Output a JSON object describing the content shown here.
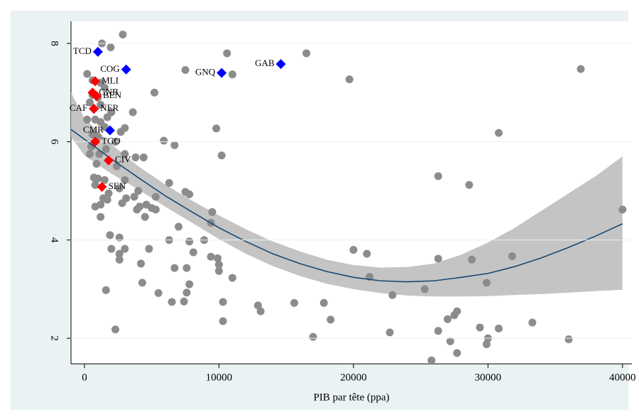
{
  "chart_data": {
    "type": "scatter",
    "xlabel": "PIB par tête (ppa)",
    "xlim": [
      -1000,
      40700
    ],
    "ylim": [
      1.48,
      8.45
    ],
    "xticks": [
      0,
      10000,
      20000,
      30000,
      40000
    ],
    "yticks": [
      2,
      4,
      6,
      8
    ],
    "grid": true,
    "points": {
      "color": "#8c8c8c",
      "x": [
        2850,
        1300,
        1950,
        10600,
        16500,
        7500,
        11000,
        200,
        36900,
        19700,
        600,
        1200,
        1500,
        5200,
        600,
        1000,
        400,
        1200,
        3600,
        2000,
        1700,
        800,
        200,
        1200,
        9800,
        3000,
        1500,
        2700,
        600,
        1000,
        30800,
        5900,
        6700,
        2300,
        500,
        1600,
        3000,
        4400,
        1100,
        400,
        10200,
        3800,
        900,
        2400,
        26300,
        700,
        1000,
        1500,
        3000,
        6300,
        28600,
        800,
        2600,
        4000,
        7500,
        7800,
        1800,
        5300,
        3100,
        3700,
        1400,
        2800,
        1700,
        4600,
        1200,
        800,
        4100,
        5000,
        3900,
        5300,
        40000,
        9500,
        1200,
        4500,
        9400,
        7000,
        1900,
        2600,
        6300,
        8900,
        7800,
        2000,
        3000,
        4800,
        2600,
        8100,
        20000,
        21000,
        31800,
        9400,
        9900,
        26300,
        2600,
        28800,
        4200,
        10000,
        7600,
        6700,
        10000,
        11000,
        21200,
        4300,
        7800,
        29900,
        1600,
        25300,
        7600,
        5500,
        22900,
        6500,
        7400,
        10300,
        12900,
        15600,
        17800,
        13100,
        27700,
        27500,
        27000,
        10300,
        18300,
        33300,
        29400,
        30800,
        2300,
        26300,
        22700,
        17000,
        30000,
        36000,
        27200,
        29900,
        27700,
        25800
      ],
      "y": [
        8.18,
        8.0,
        7.92,
        7.8,
        7.8,
        7.46,
        7.37,
        7.38,
        7.48,
        7.27,
        7.25,
        7.2,
        7.1,
        7.0,
        6.95,
        6.9,
        6.8,
        6.75,
        6.6,
        6.6,
        6.5,
        6.45,
        6.45,
        6.4,
        6.27,
        6.28,
        6.3,
        6.2,
        6.15,
        6.1,
        6.18,
        6.02,
        5.93,
        6.0,
        5.9,
        5.85,
        5.75,
        5.68,
        5.75,
        5.75,
        5.72,
        5.68,
        5.55,
        5.5,
        5.3,
        5.27,
        5.25,
        5.22,
        5.22,
        5.16,
        5.12,
        5.12,
        5.05,
        5.0,
        4.98,
        4.93,
        4.95,
        4.88,
        4.85,
        4.88,
        4.85,
        4.75,
        4.82,
        4.72,
        4.72,
        4.68,
        4.68,
        4.65,
        4.62,
        4.62,
        4.62,
        4.57,
        4.47,
        4.47,
        4.35,
        4.27,
        4.1,
        4.05,
        4.0,
        4.0,
        3.97,
        3.82,
        3.82,
        3.82,
        3.72,
        3.75,
        3.8,
        3.72,
        3.67,
        3.66,
        3.63,
        3.62,
        3.6,
        3.6,
        3.52,
        3.5,
        3.43,
        3.43,
        3.37,
        3.23,
        3.25,
        3.13,
        3.1,
        3.13,
        2.98,
        3.0,
        2.93,
        2.92,
        2.88,
        2.74,
        2.75,
        2.74,
        2.67,
        2.72,
        2.72,
        2.55,
        2.55,
        2.47,
        2.39,
        2.35,
        2.38,
        2.32,
        2.22,
        2.2,
        2.18,
        2.15,
        2.12,
        2.03,
        2.0,
        1.98,
        1.94,
        1.88,
        1.7,
        1.55
      ]
    },
    "labeled": [
      {
        "color": "#0000ff",
        "label_position": "left",
        "labels": [
          "TCD",
          "COG",
          "GNQ",
          "GAB",
          "CAF",
          "CMR"
        ],
        "x": [
          1000,
          3100,
          10200,
          14600,
          700,
          1900
        ],
        "y": [
          7.83,
          7.47,
          7.4,
          7.58,
          6.67,
          6.23
        ]
      },
      {
        "color": "#ff0000",
        "label_position": "right",
        "labels": [
          "MLI",
          "GNB",
          "BEN",
          "NER",
          "TGO",
          "CIV",
          "SEN"
        ],
        "x": [
          800,
          600,
          900,
          700,
          800,
          1800,
          1300
        ],
        "y": [
          7.23,
          7.0,
          6.93,
          6.67,
          6.0,
          5.62,
          5.08
        ]
      }
    ],
    "fit": {
      "color": "#1a476f",
      "band_color": "#bebebe",
      "x": [
        -1000,
        0,
        2000,
        4000,
        6000,
        8000,
        10000,
        12000,
        14000,
        16000,
        18000,
        20000,
        22000,
        24000,
        26000,
        28000,
        30000,
        32000,
        34000,
        36000,
        38000,
        40000
      ],
      "y": [
        6.25,
        6.05,
        5.65,
        5.27,
        4.9,
        4.57,
        4.25,
        3.97,
        3.72,
        3.52,
        3.36,
        3.24,
        3.17,
        3.15,
        3.17,
        3.24,
        3.32,
        3.46,
        3.64,
        3.85,
        4.08,
        4.33
      ],
      "upper": [
        7.0,
        6.48,
        5.95,
        5.5,
        5.13,
        4.8,
        4.5,
        4.22,
        3.97,
        3.77,
        3.6,
        3.49,
        3.44,
        3.45,
        3.52,
        3.7,
        3.95,
        4.25,
        4.6,
        4.95,
        5.3,
        5.7
      ],
      "lower": [
        6.1,
        5.72,
        5.35,
        5.03,
        4.68,
        4.35,
        4.02,
        3.72,
        3.47,
        3.27,
        3.11,
        3.0,
        2.92,
        2.87,
        2.85,
        2.85,
        2.86,
        2.88,
        2.9,
        2.93,
        2.96,
        2.99
      ]
    }
  }
}
